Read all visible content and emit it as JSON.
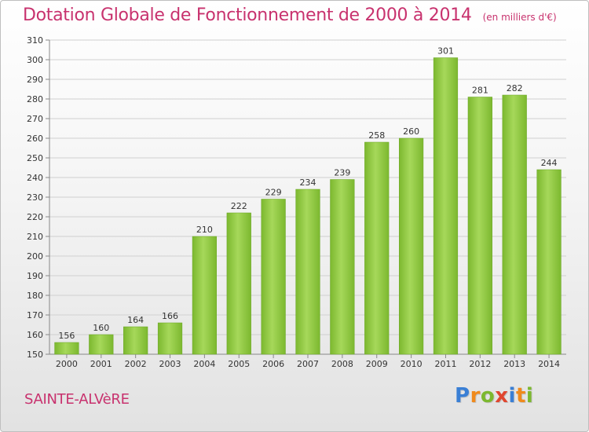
{
  "header": {
    "title": "Dotation Globale de Fonctionnement de 2000 à 2014",
    "unit": "(en milliers d'€)"
  },
  "footer": {
    "commune": "SAINTE-ALVèRE",
    "logo": "Proxiti"
  },
  "colors": {
    "title": "#c8326e",
    "bar": "#7cb82f",
    "bar_light": "#a6d85a",
    "grid": "#d0d0d0",
    "logo_letters": [
      "#3a7fd5",
      "#f08a1c",
      "#7cb82f",
      "#e0462f",
      "#3a7fd5",
      "#f08a1c",
      "#7cb82f"
    ]
  },
  "chart_data": {
    "type": "bar",
    "categories": [
      "2000",
      "2001",
      "2002",
      "2003",
      "2004",
      "2005",
      "2006",
      "2007",
      "2008",
      "2009",
      "2010",
      "2011",
      "2012",
      "2013",
      "2014"
    ],
    "values": [
      156,
      160,
      164,
      166,
      210,
      222,
      229,
      234,
      239,
      258,
      260,
      301,
      281,
      282,
      244
    ],
    "title": "Dotation Globale de Fonctionnement de 2000 à 2014",
    "subtitle": "(en milliers d'€)",
    "xlabel": "",
    "ylabel": "",
    "ylim": [
      150,
      310
    ],
    "yticks": [
      150,
      160,
      170,
      180,
      190,
      200,
      210,
      220,
      230,
      240,
      250,
      260,
      270,
      280,
      290,
      300,
      310
    ],
    "grid": true,
    "legend": "none"
  }
}
